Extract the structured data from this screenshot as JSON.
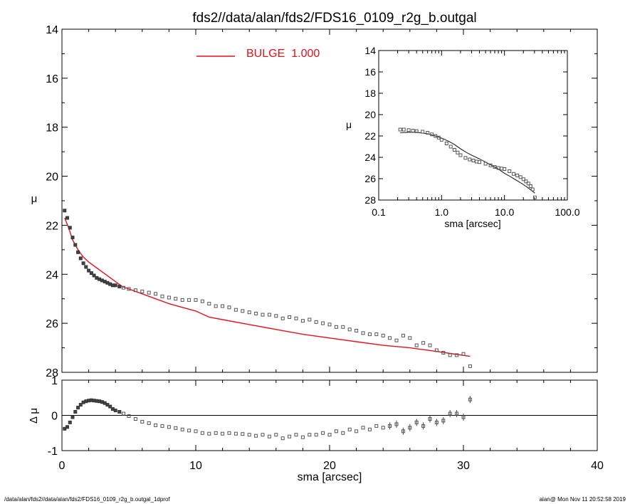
{
  "title": "fds2//data/alan/fds2/FDS16_0109_r2g_b.outgal",
  "footer": {
    "left": "/data/alan/fds2//data/alan/fds2/FDS16_0109_r2g_b.outgal_1dprof",
    "right": "alan@  Mon Nov 11 20:52:58 2019"
  },
  "colors": {
    "model": "#e3121b",
    "points": "#555555",
    "inset_model": "#222222"
  },
  "chart_data": [
    {
      "type": "scatter",
      "panel": "main",
      "xlabel": "",
      "ylabel": "μ",
      "xlim": [
        0,
        40
      ],
      "ylim": [
        28,
        14
      ],
      "y_inverted": true,
      "y_ticks": [
        14,
        16,
        18,
        20,
        22,
        24,
        26,
        28
      ],
      "legend": {
        "label": "BULGE",
        "value": "1.000",
        "placement": "top-center"
      },
      "series": [
        {
          "name": "BULGE",
          "kind": "line",
          "x": [
            0.2,
            0.5,
            0.8,
            1.2,
            1.6,
            2.0,
            2.5,
            3.0,
            3.5,
            4.0,
            4.5,
            5.0,
            6.0,
            7.0,
            8.0,
            9.0,
            10.0,
            11.0,
            12.0,
            14.0,
            16.0,
            18.0,
            20.0,
            22.0,
            24.0,
            26.0,
            28.0,
            30.5
          ],
          "y": [
            21.7,
            22.1,
            22.6,
            23.0,
            23.3,
            23.5,
            23.7,
            23.9,
            24.1,
            24.3,
            24.5,
            24.6,
            24.8,
            25.0,
            25.2,
            25.35,
            25.5,
            25.75,
            25.85,
            26.05,
            26.25,
            26.45,
            26.6,
            26.75,
            26.9,
            27.0,
            27.15,
            27.35
          ]
        },
        {
          "kind": "points",
          "x": [
            0.2,
            0.4,
            0.6,
            0.8,
            1.0,
            1.2,
            1.4,
            1.6,
            1.8,
            2.0,
            2.2,
            2.4,
            2.6,
            2.8,
            3.0,
            3.2,
            3.4,
            3.6,
            3.8,
            4.0,
            4.3,
            4.6,
            5.0,
            5.5,
            6.0,
            6.5,
            7.0,
            7.5,
            8.0,
            8.5,
            9.0,
            9.5,
            10.0,
            10.5,
            11.0,
            11.5,
            12.0,
            12.5,
            13.0,
            13.5,
            14.0,
            14.5,
            15.0,
            15.5,
            16.0,
            16.5,
            17.0,
            17.5,
            18.0,
            18.5,
            19.0,
            19.5,
            20.0,
            20.5,
            21.0,
            21.5,
            22.0,
            22.5,
            23.0,
            23.5,
            24.0,
            24.5,
            25.0,
            25.5,
            26.0,
            26.5,
            27.0,
            27.5,
            28.0,
            28.5,
            29.0,
            29.5,
            30.0,
            30.5
          ],
          "y": [
            21.4,
            21.7,
            22.1,
            22.5,
            22.8,
            23.1,
            23.35,
            23.55,
            23.7,
            23.85,
            23.95,
            24.05,
            24.15,
            24.2,
            24.25,
            24.3,
            24.35,
            24.4,
            24.45,
            24.45,
            24.5,
            24.55,
            24.6,
            24.65,
            24.7,
            24.75,
            24.8,
            24.9,
            24.95,
            25.0,
            25.05,
            25.05,
            25.05,
            25.1,
            25.2,
            25.3,
            25.3,
            25.35,
            25.45,
            25.5,
            25.55,
            25.6,
            25.65,
            25.65,
            25.7,
            25.8,
            25.75,
            25.8,
            25.9,
            25.85,
            25.95,
            26.0,
            26.05,
            26.15,
            26.15,
            26.25,
            26.3,
            26.4,
            26.45,
            26.45,
            26.5,
            26.6,
            26.7,
            26.5,
            26.6,
            26.9,
            26.8,
            26.9,
            27.1,
            27.2,
            27.3,
            27.3,
            27.25,
            27.75
          ]
        }
      ]
    },
    {
      "type": "scatter",
      "panel": "residual",
      "xlabel": "sma [arcsec]",
      "ylabel": "Δ μ",
      "xlim": [
        0,
        40
      ],
      "ylim": [
        -1,
        1
      ],
      "x_ticks": [
        0,
        10,
        20,
        30,
        40
      ],
      "y_ticks": [
        -1,
        0,
        1
      ],
      "zero_line": true,
      "series": [
        {
          "kind": "points",
          "x": [
            0.2,
            0.4,
            0.6,
            0.8,
            1.0,
            1.2,
            1.4,
            1.6,
            1.8,
            2.0,
            2.2,
            2.4,
            2.6,
            2.8,
            3.0,
            3.2,
            3.4,
            3.6,
            3.8,
            4.0,
            4.3,
            4.6,
            5.0,
            5.5,
            6.0,
            6.5,
            7.0,
            7.5,
            8.0,
            8.5,
            9.0,
            9.5,
            10.0,
            10.5,
            11.0,
            11.5,
            12.0,
            12.5,
            13.0,
            13.5,
            14.0,
            14.5,
            15.0,
            15.5,
            16.0,
            16.5,
            17.0,
            17.5,
            18.0,
            18.5,
            19.0,
            19.5,
            20.0,
            20.5,
            21.0,
            21.5,
            22.0,
            22.5,
            23.0,
            23.5,
            24.0,
            24.5,
            25.0,
            25.5,
            26.0,
            26.5,
            27.0,
            27.5,
            28.0,
            28.5,
            29.0,
            29.5,
            30.0,
            30.5
          ],
          "y": [
            -0.38,
            -0.33,
            -0.2,
            -0.05,
            0.1,
            0.22,
            0.3,
            0.37,
            0.4,
            0.42,
            0.43,
            0.42,
            0.41,
            0.4,
            0.38,
            0.35,
            0.3,
            0.25,
            0.18,
            0.14,
            0.1,
            0.05,
            -0.02,
            -0.1,
            -0.18,
            -0.22,
            -0.28,
            -0.3,
            -0.33,
            -0.36,
            -0.4,
            -0.43,
            -0.45,
            -0.5,
            -0.52,
            -0.5,
            -0.52,
            -0.5,
            -0.52,
            -0.53,
            -0.55,
            -0.58,
            -0.55,
            -0.6,
            -0.55,
            -0.65,
            -0.6,
            -0.55,
            -0.62,
            -0.55,
            -0.55,
            -0.5,
            -0.55,
            -0.45,
            -0.5,
            -0.4,
            -0.45,
            -0.35,
            -0.4,
            -0.3,
            -0.35,
            -0.3,
            -0.25,
            -0.45,
            -0.35,
            -0.2,
            -0.3,
            -0.1,
            -0.2,
            -0.15,
            0.05,
            0.05,
            -0.05,
            0.45
          ]
        }
      ]
    },
    {
      "type": "scatter",
      "panel": "inset",
      "x_scale": "log",
      "xlabel": "sma [arcsec]",
      "ylabel": "μ",
      "xlim": [
        0.1,
        100.0
      ],
      "ylim": [
        28,
        14
      ],
      "y_inverted": true,
      "x_ticks": [
        "0.1",
        "1.0",
        "10.0",
        "100.0"
      ],
      "y_ticks": [
        14,
        16,
        18,
        20,
        22,
        24,
        26,
        28
      ],
      "series": [
        {
          "kind": "line",
          "x": [
            0.22,
            0.3,
            0.4,
            0.6,
            0.8,
            1.0,
            1.3,
            1.6,
            2.0,
            2.5,
            3.0,
            4.0,
            5.0,
            6.0,
            8.0,
            10.0,
            12.0,
            15.0,
            20.0,
            25.0,
            30.5
          ],
          "y": [
            21.7,
            21.65,
            21.65,
            21.8,
            22.0,
            22.2,
            22.5,
            22.8,
            23.2,
            23.55,
            23.8,
            24.15,
            24.45,
            24.7,
            25.1,
            25.5,
            25.75,
            26.1,
            26.55,
            26.95,
            27.35
          ]
        },
        {
          "kind": "points",
          "x": [
            0.22,
            0.25,
            0.3,
            0.35,
            0.4,
            0.5,
            0.6,
            0.7,
            0.8,
            0.9,
            1.0,
            1.2,
            1.4,
            1.6,
            1.8,
            2.0,
            2.4,
            2.8,
            3.2,
            3.6,
            4.0,
            5.0,
            6.0,
            7.0,
            8.0,
            9.0,
            10.0,
            12.0,
            14.0,
            16.0,
            18.0,
            20.0,
            22.0,
            24.0,
            26.0,
            28.0,
            30.5
          ],
          "y": [
            21.4,
            21.4,
            21.45,
            21.5,
            21.55,
            21.6,
            21.7,
            21.85,
            22.0,
            22.15,
            22.35,
            22.7,
            23.0,
            23.3,
            23.55,
            23.8,
            24.05,
            24.2,
            24.3,
            24.4,
            24.45,
            24.6,
            24.75,
            24.9,
            25.0,
            25.05,
            25.1,
            25.3,
            25.55,
            25.7,
            25.85,
            26.05,
            26.25,
            26.45,
            26.7,
            27.0,
            27.75
          ]
        }
      ]
    }
  ]
}
